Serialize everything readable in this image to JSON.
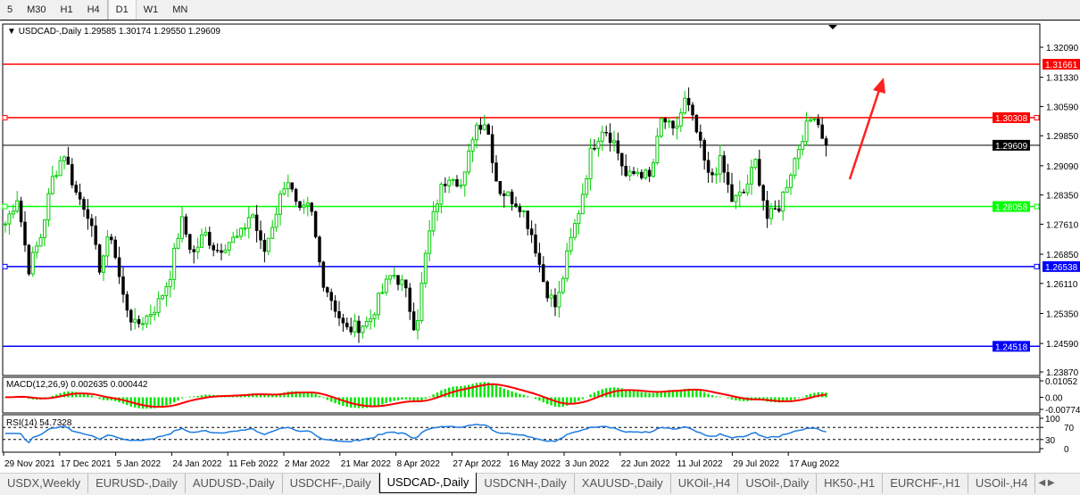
{
  "timeframes": [
    {
      "label": "5"
    },
    {
      "label": "M30"
    },
    {
      "label": "H1"
    },
    {
      "label": "H4"
    },
    {
      "label": "D1",
      "active": true
    },
    {
      "label": "W1"
    },
    {
      "label": "MN"
    }
  ],
  "chart_header": {
    "symbol": "USDCAD-,Daily",
    "ohlc": "1.29585 1.30174 1.29550 1.29609"
  },
  "macd_label": "MACD(12,26,9) 0.002635 0.000442",
  "rsi_label": "RSI(14) 54.7328",
  "colors": {
    "up": "#00cc00",
    "down": "#000000",
    "red_line": "#ff0000",
    "green_line": "#00ff00",
    "blue_line": "#0000ff",
    "macd_hist": "#00e600",
    "macd_signal": "#ff0000",
    "rsi": "#1e7be0",
    "arrow": "#ff2020"
  },
  "chart_data": {
    "type": "candlestick",
    "price_ticks": [
      "1.32090",
      "1.31330",
      "1.30590",
      "1.29850",
      "1.29090",
      "1.28350",
      "1.27610",
      "1.26850",
      "1.26110",
      "1.25350",
      "1.24590",
      "1.23870"
    ],
    "ylim": [
      1.2387,
      1.3209
    ],
    "date_labels": [
      "29 Nov 2021",
      "17 Dec 2021",
      "5 Jan 2022",
      "24 Jan 2022",
      "11 Feb 2022",
      "2 Mar 2022",
      "21 Mar 2022",
      "8 Apr 2022",
      "27 Apr 2022",
      "16 May 2022",
      "3 Jun 2022",
      "22 Jun 2022",
      "11 Jul 2022",
      "29 Jul 2022",
      "17 Aug 2022"
    ],
    "closes_sampled": [
      1.2762,
      1.283,
      1.2649,
      1.2728,
      1.2875,
      1.2943,
      1.2841,
      1.2796,
      1.2649,
      1.2739,
      1.2581,
      1.2502,
      1.2525,
      1.2559,
      1.2626,
      1.2773,
      1.2683,
      1.2739,
      1.2694,
      1.2717,
      1.2728,
      1.2796,
      1.2683,
      1.2784,
      1.2886,
      1.2784,
      1.2807,
      1.2626,
      1.2559,
      1.2491,
      1.2502,
      1.2514,
      1.2581,
      1.2638,
      1.2604,
      1.2491,
      1.2717,
      1.2841,
      1.2897,
      1.2852,
      1.301,
      1.3022,
      1.2852,
      1.283,
      1.2807,
      1.2728,
      1.2604,
      1.2547,
      1.2694,
      1.2807,
      1.2954,
      1.301,
      1.2965,
      1.2875,
      1.2897,
      1.2875,
      1.3033,
      1.2988,
      1.3078,
      1.2988,
      1.2875,
      1.292,
      1.2818,
      1.2841,
      1.292,
      1.2773,
      1.2807,
      1.2897,
      1.2988,
      1.3044,
      1.2961
    ],
    "levels": [
      {
        "value": "1.31661",
        "color": "#ff0000"
      },
      {
        "value": "1.30308",
        "color": "#ff0000",
        "handle": true
      },
      {
        "value": "1.29609",
        "color": "#000000",
        "current": true
      },
      {
        "value": "1.28058",
        "color": "#00ff00",
        "handle": true
      },
      {
        "value": "1.26538",
        "color": "#0000ff",
        "handle": true
      },
      {
        "value": "1.24518",
        "color": "#0000ff"
      }
    ],
    "macd_ticks": [
      "0.01052",
      "0.00",
      "-0.007744"
    ],
    "rsi_ticks": [
      "100",
      "70",
      "30",
      "0"
    ],
    "rsi_levels": [
      70,
      30
    ]
  },
  "tabs": [
    {
      "label": "USDX,Weekly"
    },
    {
      "label": "EURUSD-,Daily"
    },
    {
      "label": "AUDUSD-,Daily"
    },
    {
      "label": "USDCHF-,Daily"
    },
    {
      "label": "USDCAD-,Daily",
      "active": true
    },
    {
      "label": "USDCNH-,Daily"
    },
    {
      "label": "XAUUSD-,Daily"
    },
    {
      "label": "UKOil-,H4"
    },
    {
      "label": "USOil-,Daily"
    },
    {
      "label": "HK50-,H1"
    },
    {
      "label": "EURCHF-,H1"
    },
    {
      "label": "USOil-,H4"
    }
  ]
}
